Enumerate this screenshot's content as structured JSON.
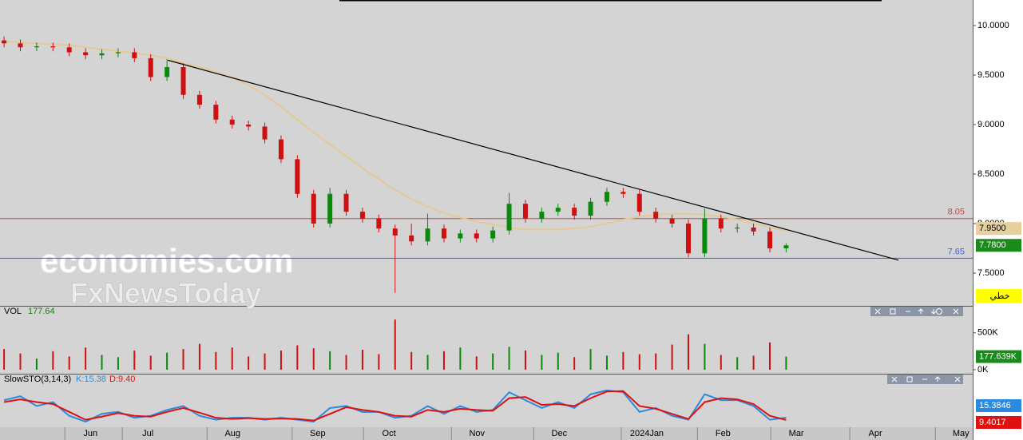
{
  "chart_data": [
    {
      "type": "candlestick",
      "x": [
        1,
        5,
        9,
        13,
        17,
        21,
        25,
        29,
        33,
        37,
        41,
        45,
        49,
        53,
        57,
        61,
        65,
        69,
        73,
        77,
        81,
        85,
        89,
        93,
        97,
        101,
        105,
        109,
        113,
        117,
        121,
        125,
        129,
        133,
        137,
        141,
        145,
        149,
        153,
        157,
        161,
        165,
        169,
        173,
        177,
        181,
        185,
        189,
        193
      ],
      "open": [
        9.85,
        9.82,
        9.78,
        9.79,
        9.78,
        9.73,
        9.7,
        9.72,
        9.73,
        9.67,
        9.48,
        9.58,
        9.3,
        9.2,
        9.05,
        9.0,
        8.98,
        8.85,
        8.65,
        8.3,
        8.0,
        8.3,
        8.12,
        8.05,
        7.95,
        7.88,
        7.82,
        7.95,
        7.85,
        7.9,
        7.85,
        7.93,
        8.2,
        8.05,
        8.12,
        8.16,
        8.08,
        8.22,
        8.32,
        8.3,
        8.12,
        8.05,
        8.0,
        7.7,
        8.05,
        7.95,
        7.96,
        7.92,
        7.75
      ],
      "high": [
        9.89,
        9.86,
        9.83,
        9.83,
        9.82,
        9.77,
        9.76,
        9.77,
        9.77,
        9.71,
        9.66,
        9.62,
        9.34,
        9.24,
        9.09,
        9.04,
        9.02,
        8.89,
        8.69,
        8.34,
        8.36,
        8.34,
        8.16,
        8.09,
        7.99,
        8.0,
        8.1,
        7.99,
        7.94,
        7.94,
        7.97,
        8.31,
        8.24,
        8.16,
        8.2,
        8.2,
        8.26,
        8.36,
        8.36,
        8.34,
        8.16,
        8.09,
        8.04,
        8.15,
        8.09,
        8.0,
        8.0,
        7.96,
        7.8
      ],
      "low": [
        9.78,
        9.74,
        9.74,
        9.74,
        9.69,
        9.66,
        9.66,
        9.68,
        9.63,
        9.44,
        9.44,
        9.26,
        9.16,
        9.01,
        8.96,
        8.94,
        8.81,
        8.61,
        8.26,
        7.96,
        7.96,
        8.08,
        8.01,
        7.91,
        7.3,
        7.78,
        7.78,
        7.81,
        7.81,
        7.81,
        7.81,
        7.89,
        8.01,
        8.01,
        8.08,
        8.04,
        8.04,
        8.18,
        8.26,
        8.08,
        8.01,
        7.96,
        7.66,
        7.66,
        7.91,
        7.91,
        7.88,
        7.71,
        7.71
      ],
      "close": [
        9.82,
        9.78,
        9.79,
        9.78,
        9.73,
        9.7,
        9.72,
        9.73,
        9.67,
        9.48,
        9.58,
        9.3,
        9.2,
        9.05,
        9.0,
        8.98,
        8.85,
        8.65,
        8.3,
        8.0,
        8.3,
        8.12,
        8.05,
        7.95,
        7.88,
        7.82,
        7.95,
        7.85,
        7.9,
        7.85,
        7.93,
        8.2,
        8.05,
        8.12,
        8.16,
        8.08,
        8.22,
        8.32,
        8.3,
        8.12,
        8.05,
        8.0,
        7.7,
        8.05,
        7.95,
        7.96,
        7.92,
        7.75,
        7.78
      ],
      "up_color": "#0a8a0a",
      "down_color": "#d01010",
      "moving_average": {
        "color": "#e6c992",
        "values": [
          9.84,
          9.83,
          9.82,
          9.81,
          9.8,
          9.78,
          9.76,
          9.74,
          9.72,
          9.7,
          9.67,
          9.62,
          9.58,
          9.53,
          9.47,
          9.4,
          9.3,
          9.18,
          9.05,
          8.92,
          8.8,
          8.68,
          8.56,
          8.45,
          8.34,
          8.25,
          8.17,
          8.11,
          8.06,
          8.02,
          7.99,
          7.96,
          7.94,
          7.94,
          7.94,
          7.95,
          7.97,
          8.0,
          8.04,
          8.07,
          8.09,
          8.1,
          8.1,
          8.09,
          8.07,
          8.04,
          8.0,
          7.96,
          7.93
        ]
      },
      "trendline": {
        "x": [
          41.2,
          220.6
        ],
        "y": [
          9.65,
          7.63
        ],
        "color": "#000000"
      },
      "hlines": [
        {
          "value": 8.05,
          "color": "#c04848"
        },
        {
          "value": 7.65,
          "color": "#4060e0"
        }
      ],
      "price_tags": [
        {
          "value": 7.95,
          "label": "7.9500",
          "color": "#e6d09c",
          "text_color": "#000000"
        },
        {
          "value": 7.78,
          "label": "7.7800",
          "color": "#1a8a1a",
          "text_color": "#ffffff"
        }
      ],
      "mode_button": "خطي",
      "watermark": [
        "economies.com",
        "FxNewsToday"
      ],
      "xlim": [
        0,
        238.8
      ],
      "ylim": [
        7.169,
        10.258
      ],
      "yticks": [
        {
          "value": 10,
          "label": "10.0000"
        },
        {
          "value": 9.5,
          "label": "9.5000"
        },
        {
          "value": 9,
          "label": "9.0000"
        },
        {
          "value": 8.5,
          "label": "8.5000"
        },
        {
          "value": 8,
          "label": "8.0000"
        },
        {
          "value": 7.5,
          "label": "7.5000"
        }
      ]
    },
    {
      "type": "bar",
      "title": "VOL",
      "last_label": "177.64",
      "values": [
        280000,
        220000,
        150000,
        250000,
        180000,
        300000,
        200000,
        170000,
        260000,
        190000,
        230000,
        280000,
        350000,
        240000,
        300000,
        180000,
        220000,
        260000,
        330000,
        290000,
        250000,
        200000,
        270000,
        210000,
        680000,
        240000,
        200000,
        250000,
        300000,
        180000,
        220000,
        310000,
        260000,
        200000,
        230000,
        170000,
        280000,
        190000,
        240000,
        210000,
        220000,
        340000,
        480000,
        350000,
        200000,
        170000,
        190000,
        370000,
        177639
      ],
      "tag": {
        "value": 177639,
        "label": "177.639K",
        "color": "#1a8a1a"
      },
      "ylim": [
        -55000,
        855000
      ],
      "yticks": [
        {
          "value": 500000,
          "label": "500K"
        },
        {
          "value": 0,
          "label": "0K"
        }
      ]
    },
    {
      "type": "line",
      "title": "SlowSTO(3,14,3)",
      "series": [
        {
          "name": "K:15.38",
          "color": "#2a8ae0",
          "last_value": 15.3846,
          "values": [
            60,
            70,
            45,
            55,
            20,
            5,
            25,
            30,
            15,
            20,
            35,
            45,
            20,
            10,
            15,
            15,
            10,
            15,
            10,
            5,
            40,
            45,
            30,
            30,
            15,
            20,
            45,
            25,
            45,
            30,
            35,
            80,
            60,
            40,
            55,
            40,
            75,
            85,
            80,
            30,
            40,
            20,
            10,
            75,
            60,
            60,
            45,
            10,
            15.38
          ]
        },
        {
          "name": "D:9.40",
          "color": "#e01010",
          "last_value": 9.4017,
          "values": [
            55,
            62,
            55,
            50,
            30,
            10,
            18,
            27,
            20,
            18,
            30,
            40,
            28,
            15,
            12,
            14,
            12,
            13,
            12,
            8,
            25,
            42,
            35,
            30,
            20,
            18,
            35,
            30,
            38,
            35,
            33,
            65,
            68,
            48,
            50,
            45,
            65,
            82,
            83,
            45,
            38,
            25,
            12,
            55,
            65,
            62,
            50,
            20,
            9.4
          ]
        }
      ],
      "ylim": [
        -5,
        105
      ],
      "xlim": [
        0,
        238.8
      ],
      "xticks": [
        {
          "value": 22.2,
          "label": "Jun"
        },
        {
          "value": 36.3,
          "label": "Jul"
        },
        {
          "value": 57.1,
          "label": "Aug"
        },
        {
          "value": 78.0,
          "label": "Sep"
        },
        {
          "value": 95.5,
          "label": "Oct"
        },
        {
          "value": 117.1,
          "label": "Nov"
        },
        {
          "value": 137.3,
          "label": "Dec"
        },
        {
          "value": 158.8,
          "label": "2024Jan"
        },
        {
          "value": 177.5,
          "label": "Feb"
        },
        {
          "value": 195.5,
          "label": "Mar"
        },
        {
          "value": 214.9,
          "label": "Apr"
        },
        {
          "value": 235.9,
          "label": "May"
        }
      ]
    }
  ]
}
